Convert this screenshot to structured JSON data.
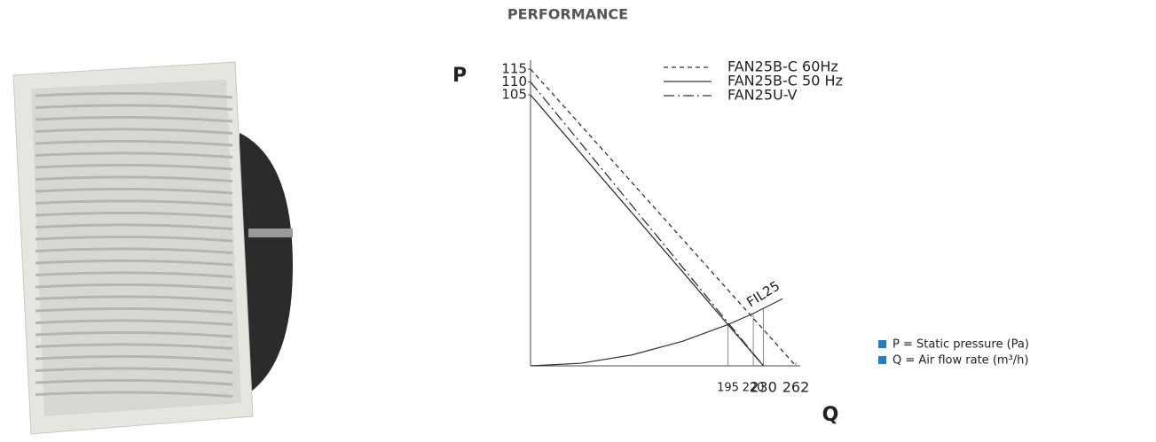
{
  "chart_data": {
    "type": "line",
    "title": "PERFORMANCE",
    "y_label": "P",
    "x_label": "Q",
    "xlim": [
      0,
      262
    ],
    "ylim": [
      0,
      115
    ],
    "xticks": [
      195,
      220,
      230,
      262
    ],
    "yticks": [
      105,
      110,
      115
    ],
    "series": [
      {
        "name": "FAN25B-C 60Hz",
        "color": "#333333",
        "style": "dashed",
        "x": [
          0,
          262
        ],
        "values": [
          115,
          0
        ]
      },
      {
        "name": "FAN25B-C 50 Hz",
        "color": "#333333",
        "style": "solid",
        "x": [
          0,
          230
        ],
        "values": [
          105,
          0
        ]
      },
      {
        "name": "FAN25U-V",
        "color": "#333333",
        "style": "dashdot",
        "x": [
          0,
          230
        ],
        "values": [
          110,
          0
        ]
      }
    ],
    "filter_curve": {
      "label": "FIL25",
      "color": "#333333",
      "x": [
        0,
        50,
        100,
        150,
        195,
        220,
        249
      ],
      "values": [
        0,
        1,
        4.2,
        9.5,
        16,
        20.3,
        26
      ]
    },
    "notes": [
      "P = Static pressure (Pa)",
      "Q = Air flow rate (m³/h)"
    ],
    "note_color": "#1f7fc4"
  }
}
